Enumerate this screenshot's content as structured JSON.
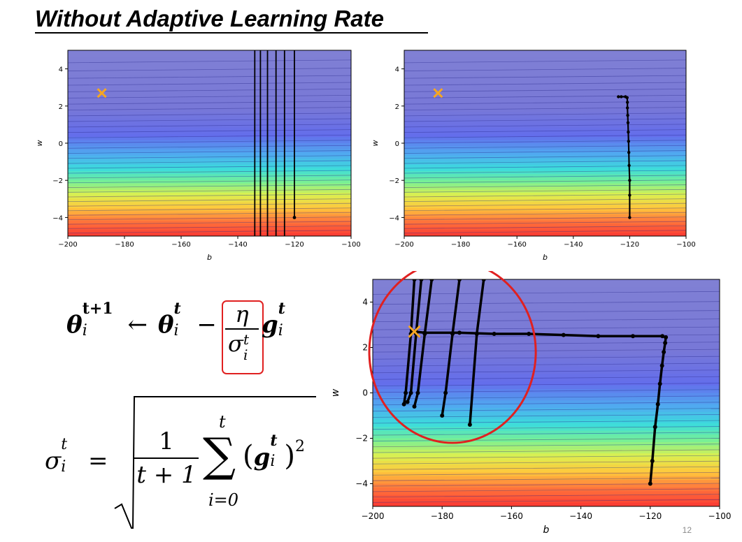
{
  "slide": {
    "title": "Without Adaptive Learning Rate",
    "page_number": "12"
  },
  "colors": {
    "marker": "#f5a623",
    "path": "#000000",
    "highlight": "#e02020",
    "contour_top": "#8080d0",
    "contour_bottom": "#ff3030"
  },
  "formula": {
    "update": {
      "lhs_symbol": "θ",
      "lhs_super": "t+1",
      "lhs_sub": "i",
      "arrow": "←",
      "rhs_symbol": "θ",
      "rhs_super": "t",
      "rhs_sub": "i",
      "minus": "−",
      "frac_num": "η",
      "frac_den_symbol": "σ",
      "frac_den_super": "t",
      "frac_den_sub": "i",
      "grad_symbol": "g",
      "grad_super": "t",
      "grad_sub": "i"
    },
    "sigma": {
      "lhs_symbol": "σ",
      "lhs_super": "t",
      "lhs_sub": "i",
      "equals": "=",
      "frac_num": "1",
      "frac_den": "t + 1",
      "sum_symbol": "∑",
      "sum_upper": "t",
      "sum_lower": "i=0",
      "lparen": "(",
      "rparen": ")",
      "grad_symbol": "g",
      "grad_super": "t",
      "grad_sub": "i",
      "power": "2"
    }
  },
  "chart_data": [
    {
      "type": "line",
      "xlabel": "b",
      "ylabel": "w",
      "xlim": [
        -200,
        -100
      ],
      "ylim": [
        -5,
        5
      ],
      "xticks": [
        "−200",
        "−180",
        "−160",
        "−140",
        "−120",
        "−100"
      ],
      "yticks": [
        "−4",
        "−2",
        "0",
        "2",
        "4"
      ],
      "background": "contour",
      "target": {
        "b": -188,
        "w": 2.7
      },
      "series": [
        {
          "style": "line",
          "points": [
            [
              -120,
              -4
            ],
            [
              -120,
              5
            ]
          ],
          "start": [
            -120,
            -4
          ]
        },
        {
          "style": "line",
          "points": [
            [
              -123.5,
              5
            ],
            [
              -123.5,
              -5
            ]
          ]
        },
        {
          "style": "line",
          "points": [
            [
              -126.5,
              5
            ],
            [
              -126.5,
              -5
            ]
          ]
        },
        {
          "style": "line",
          "points": [
            [
              -129.5,
              5
            ],
            [
              -129.5,
              -5
            ]
          ]
        },
        {
          "style": "line",
          "points": [
            [
              -132,
              5
            ],
            [
              -132,
              -5
            ]
          ]
        },
        {
          "style": "line",
          "points": [
            [
              -134,
              5
            ],
            [
              -134,
              -5
            ]
          ]
        }
      ]
    },
    {
      "type": "line",
      "xlabel": "b",
      "ylabel": "w",
      "xlim": [
        -200,
        -100
      ],
      "ylim": [
        -5,
        5
      ],
      "xticks": [
        "−200",
        "−180",
        "−160",
        "−140",
        "−120",
        "−100"
      ],
      "yticks": [
        "−4",
        "−2",
        "0",
        "2",
        "4"
      ],
      "background": "contour",
      "target": {
        "b": -188,
        "w": 2.7
      },
      "series": [
        {
          "style": "path",
          "points": [
            [
              -120,
              -4
            ],
            [
              -120,
              -2.8
            ],
            [
              -120,
              -2
            ],
            [
              -120.2,
              -1.2
            ],
            [
              -120.3,
              -0.5
            ],
            [
              -120.4,
              0.1
            ],
            [
              -120.5,
              0.6
            ],
            [
              -120.6,
              1.1
            ],
            [
              -120.7,
              1.5
            ],
            [
              -120.8,
              1.9
            ],
            [
              -120.8,
              2.2
            ],
            [
              -120.9,
              2.45
            ],
            [
              -121.5,
              2.5
            ],
            [
              -123,
              2.5
            ],
            [
              -124,
              2.5
            ]
          ]
        }
      ]
    },
    {
      "type": "line",
      "xlabel": "b",
      "ylabel": "w",
      "xlim": [
        -200,
        -100
      ],
      "ylim": [
        -5,
        5
      ],
      "xticks": [
        "−200",
        "−180",
        "−160",
        "−140",
        "−120",
        "−100"
      ],
      "yticks": [
        "−4",
        "−2",
        "0",
        "2",
        "4"
      ],
      "background": "contour",
      "target": {
        "b": -188,
        "w": 2.7
      },
      "series": [
        {
          "style": "path",
          "points": [
            [
              -120,
              -4
            ],
            [
              -119.4,
              -3
            ],
            [
              -118.6,
              -1.5
            ],
            [
              -117.8,
              -0.5
            ],
            [
              -117.2,
              0.4
            ],
            [
              -116.6,
              1.2
            ],
            [
              -116.1,
              1.8
            ],
            [
              -115.7,
              2.2
            ],
            [
              -115.5,
              2.45
            ],
            [
              -116.5,
              2.5
            ],
            [
              -125,
              2.5
            ],
            [
              -135,
              2.5
            ],
            [
              -145,
              2.55
            ],
            [
              -155,
              2.6
            ],
            [
              -165,
              2.6
            ],
            [
              -175,
              2.65
            ],
            [
              -185,
              2.65
            ],
            [
              -188,
              2.7
            ]
          ]
        },
        {
          "style": "path",
          "points": [
            [
              -168,
              5
            ],
            [
              -170,
              2.6
            ],
            [
              -172,
              -1.4
            ]
          ]
        },
        {
          "style": "path",
          "points": [
            [
              -175,
              5
            ],
            [
              -177,
              2.6
            ],
            [
              -179,
              0
            ],
            [
              -180,
              -1.0
            ]
          ]
        },
        {
          "style": "path",
          "points": [
            [
              -183,
              5
            ],
            [
              -185,
              2.6
            ],
            [
              -187,
              0
            ],
            [
              -188,
              -0.6
            ]
          ]
        },
        {
          "style": "path",
          "points": [
            [
              -186,
              5
            ],
            [
              -187.5,
              2.6
            ],
            [
              -189,
              0
            ],
            [
              -190,
              -0.4
            ]
          ]
        },
        {
          "style": "path",
          "points": [
            [
              -188,
              5
            ],
            [
              -189,
              2.6
            ],
            [
              -190.5,
              0
            ],
            [
              -191,
              -0.5
            ]
          ]
        }
      ],
      "annotation": {
        "type": "ellipse",
        "center": [
          -177,
          1.8
        ],
        "rx_b": 24,
        "ry_w": 4.0
      }
    }
  ]
}
